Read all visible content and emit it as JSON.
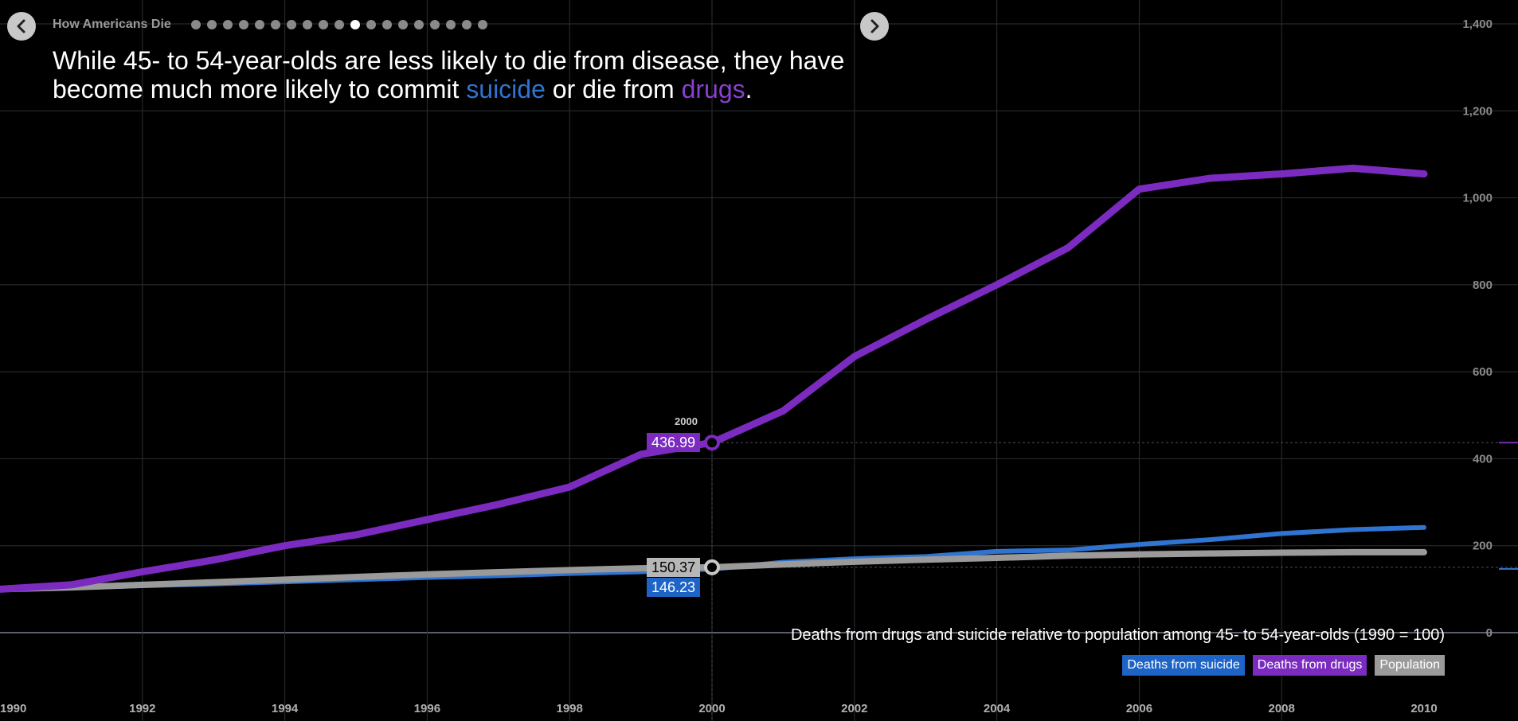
{
  "nav": {
    "series_title": "How Americans Die",
    "dot_count": 19,
    "active_dot": 10
  },
  "headline": {
    "part1": "While 45- to 54-year-olds are less likely to die from disease, they have become much more likely to commit ",
    "suicide_word": "suicide",
    "part2": " or die from ",
    "drugs_word": "drugs",
    "part3": "."
  },
  "colors": {
    "suicide": "#2f74d0",
    "drugs": "#7b2bc0",
    "population": "#9a9a9a",
    "background": "#000000"
  },
  "chart_data": {
    "type": "line",
    "title": "Deaths from drugs and suicide relative to population among 45- to 54-year-olds (1990 = 100)",
    "x": [
      1990,
      1991,
      1992,
      1993,
      1994,
      1995,
      1996,
      1997,
      1998,
      1999,
      2000,
      2001,
      2002,
      2003,
      2004,
      2005,
      2006,
      2007,
      2008,
      2009,
      2010
    ],
    "xlim": [
      1990,
      2010
    ],
    "ylim": [
      0,
      1400
    ],
    "x_ticks": [
      "1990",
      "1992",
      "1994",
      "1996",
      "1998",
      "2000",
      "2002",
      "2004",
      "2006",
      "2008",
      "2010"
    ],
    "y_ticks": [
      "0",
      "200",
      "400",
      "600",
      "800",
      "1,000",
      "1,200",
      "1,400"
    ],
    "grid": true,
    "legend_position": "bottom-right",
    "series": [
      {
        "name": "Deaths from suicide",
        "color": "#2f74d0",
        "values": [
          100,
          103,
          108,
          112,
          117,
          122,
          127,
          131,
          136,
          140,
          146.23,
          162,
          170,
          175,
          187,
          190,
          203,
          214,
          228,
          237,
          242
        ]
      },
      {
        "name": "Deaths from drugs",
        "color": "#7b2bc0",
        "values": [
          100,
          110,
          140,
          167,
          200,
          225,
          260,
          295,
          335,
          410,
          436.99,
          510,
          635,
          720,
          800,
          885,
          1020,
          1045,
          1055,
          1068,
          1055
        ]
      },
      {
        "name": "Population",
        "color": "#9a9a9a",
        "values": [
          100,
          104,
          110,
          116,
          122,
          128,
          134,
          139,
          144,
          148,
          150.37,
          157,
          163,
          168,
          172,
          177,
          180,
          182,
          184,
          185,
          185
        ]
      }
    ],
    "highlight": {
      "year": "2000",
      "drugs_value": "436.99",
      "population_value": "150.37",
      "suicide_value": "146.23"
    }
  }
}
